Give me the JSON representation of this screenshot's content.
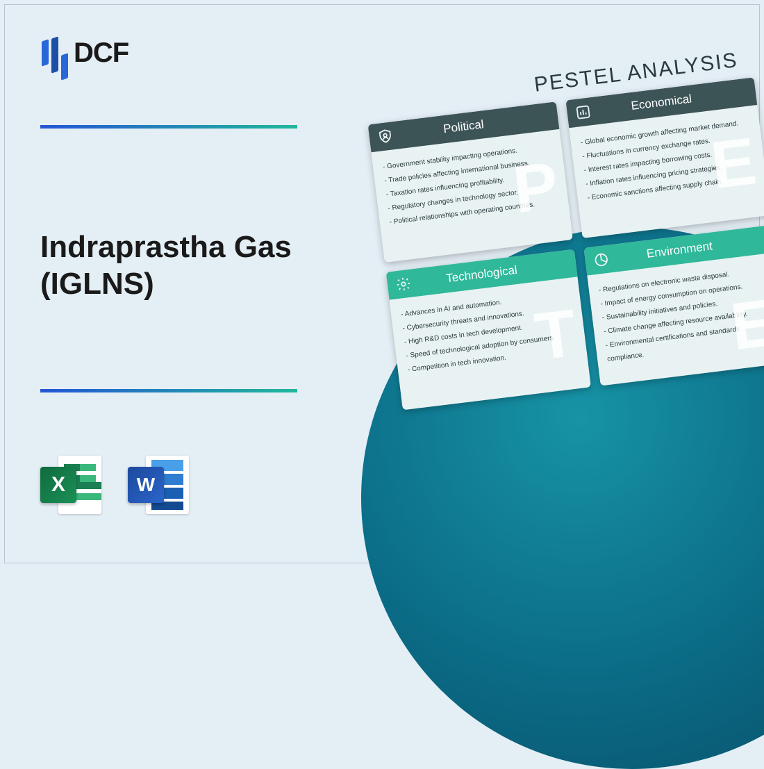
{
  "logo": {
    "text": "DCF"
  },
  "title": "Indraprastha Gas (IGLNS)",
  "file_icons": {
    "excel_letter": "X",
    "word_letter": "W"
  },
  "pestel": {
    "heading": "PESTEL ANALYSIS",
    "cards": [
      {
        "title": "Political",
        "header_color": "#3d5457",
        "watermark": "P",
        "icon": "shield-user",
        "items": [
          "Government stability impacting operations.",
          "Trade policies affecting international business.",
          "Taxation rates influencing profitability.",
          "Regulatory changes in technology sector.",
          "Political relationships with operating countries."
        ]
      },
      {
        "title": "Economical",
        "header_color": "#3d5457",
        "watermark": "E",
        "icon": "bar-chart",
        "items": [
          "Global economic growth affecting market demand.",
          "Fluctuations in currency exchange rates.",
          "Interest rates impacting borrowing costs.",
          "Inflation rates influencing pricing strategies.",
          "Economic sanctions affecting supply chain."
        ]
      },
      {
        "title": "Technological",
        "header_color": "#2fb89a",
        "watermark": "T",
        "icon": "gear",
        "items": [
          "Advances in AI and automation.",
          "Cybersecurity threats and innovations.",
          "High R&D costs in tech development.",
          "Speed of technological adoption by consumers.",
          "Competition in tech innovation."
        ]
      },
      {
        "title": "Environment",
        "header_color": "#2fb89a",
        "watermark": "E",
        "icon": "pie",
        "items": [
          "Regulations on electronic waste disposal.",
          "Impact of energy consumption on operations.",
          "Sustainability initiatives and policies.",
          "Climate change affecting resource availability.",
          "Environmental certifications and standards compliance."
        ]
      }
    ]
  },
  "colors": {
    "background": "#e4eef5",
    "divider_gradient_start": "#2355d6",
    "divider_gradient_end": "#1fb89a",
    "circle_gradient": [
      "#1793a6",
      "#0b6b86",
      "#084e66"
    ]
  }
}
